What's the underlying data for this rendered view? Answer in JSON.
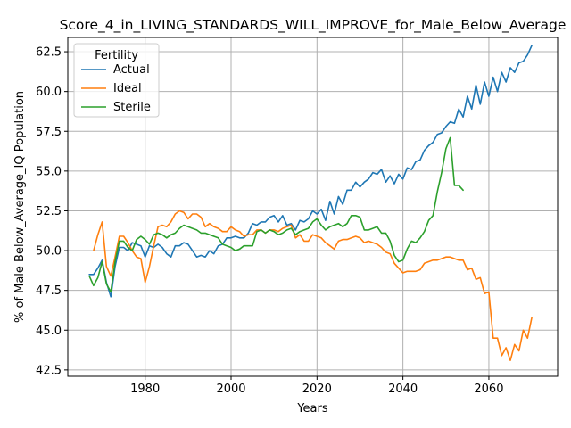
{
  "chart_data": {
    "type": "line",
    "title": "Score_4_in_LIVING_STANDARDS_WILL_IMPROVE_for_Male_Below_Average",
    "xlabel": "Years",
    "ylabel": "% of Male Below_Average_IQ Population",
    "xlim": [
      1962,
      2076
    ],
    "ylim": [
      42.1,
      63.4
    ],
    "xticks": [
      1980,
      2000,
      2020,
      2040,
      2060
    ],
    "yticks": [
      42.5,
      45.0,
      47.5,
      50.0,
      52.5,
      55.0,
      57.5,
      60.0,
      62.5
    ],
    "xtick_labels": [
      "1980",
      "2000",
      "2020",
      "2040",
      "2060"
    ],
    "ytick_labels": [
      "42.5",
      "45.0",
      "47.5",
      "50.0",
      "52.5",
      "55.0",
      "57.5",
      "60.0",
      "62.5"
    ],
    "grid": true,
    "legend": {
      "title": "Fertility",
      "position": "top-left"
    },
    "series": [
      {
        "name": "Actual",
        "color": "#1f77b4",
        "points": [
          [
            1967,
            48.5
          ],
          [
            1968,
            48.5
          ],
          [
            1969,
            48.9
          ],
          [
            1970,
            49.4
          ],
          [
            1971,
            48.0
          ],
          [
            1972,
            47.1
          ],
          [
            1973,
            49.0
          ],
          [
            1974,
            50.2
          ],
          [
            1975,
            50.2
          ],
          [
            1976,
            50.0
          ],
          [
            1977,
            50.5
          ],
          [
            1978,
            50.4
          ],
          [
            1979,
            50.3
          ],
          [
            1980,
            49.6
          ],
          [
            1981,
            50.3
          ],
          [
            1982,
            50.2
          ],
          [
            1983,
            50.4
          ],
          [
            1984,
            50.2
          ],
          [
            1985,
            49.8
          ],
          [
            1986,
            49.6
          ],
          [
            1987,
            50.3
          ],
          [
            1988,
            50.3
          ],
          [
            1989,
            50.5
          ],
          [
            1990,
            50.4
          ],
          [
            1991,
            50.0
          ],
          [
            1992,
            49.6
          ],
          [
            1993,
            49.7
          ],
          [
            1994,
            49.6
          ],
          [
            1995,
            50.0
          ],
          [
            1996,
            49.8
          ],
          [
            1997,
            50.3
          ],
          [
            1998,
            50.4
          ],
          [
            1999,
            50.8
          ],
          [
            2000,
            50.8
          ],
          [
            2001,
            50.9
          ],
          [
            2002,
            50.8
          ],
          [
            2003,
            50.8
          ],
          [
            2004,
            51.1
          ],
          [
            2005,
            51.7
          ],
          [
            2006,
            51.6
          ],
          [
            2007,
            51.8
          ],
          [
            2008,
            51.8
          ],
          [
            2009,
            52.1
          ],
          [
            2010,
            52.2
          ],
          [
            2011,
            51.8
          ],
          [
            2012,
            52.2
          ],
          [
            2013,
            51.6
          ],
          [
            2014,
            51.7
          ],
          [
            2015,
            51.3
          ],
          [
            2016,
            51.9
          ],
          [
            2017,
            51.8
          ],
          [
            2018,
            52.0
          ],
          [
            2019,
            52.5
          ],
          [
            2020,
            52.3
          ],
          [
            2021,
            52.6
          ],
          [
            2022,
            51.9
          ],
          [
            2023,
            53.1
          ],
          [
            2024,
            52.3
          ],
          [
            2025,
            53.4
          ],
          [
            2026,
            52.9
          ],
          [
            2027,
            53.8
          ],
          [
            2028,
            53.8
          ],
          [
            2029,
            54.3
          ],
          [
            2030,
            54.0
          ],
          [
            2031,
            54.3
          ],
          [
            2032,
            54.5
          ],
          [
            2033,
            54.9
          ],
          [
            2034,
            54.8
          ],
          [
            2035,
            55.1
          ],
          [
            2036,
            54.3
          ],
          [
            2037,
            54.7
          ],
          [
            2038,
            54.2
          ],
          [
            2039,
            54.8
          ],
          [
            2040,
            54.5
          ],
          [
            2041,
            55.2
          ],
          [
            2042,
            55.1
          ],
          [
            2043,
            55.6
          ],
          [
            2044,
            55.7
          ],
          [
            2045,
            56.3
          ],
          [
            2046,
            56.6
          ],
          [
            2047,
            56.8
          ],
          [
            2048,
            57.3
          ],
          [
            2049,
            57.4
          ],
          [
            2050,
            57.8
          ],
          [
            2051,
            58.1
          ],
          [
            2052,
            58.0
          ],
          [
            2053,
            58.9
          ],
          [
            2054,
            58.4
          ],
          [
            2055,
            59.7
          ],
          [
            2056,
            58.9
          ],
          [
            2057,
            60.4
          ],
          [
            2058,
            59.2
          ],
          [
            2059,
            60.6
          ],
          [
            2060,
            59.7
          ],
          [
            2061,
            60.9
          ],
          [
            2062,
            60.0
          ],
          [
            2063,
            61.2
          ],
          [
            2064,
            60.6
          ],
          [
            2065,
            61.5
          ],
          [
            2066,
            61.2
          ],
          [
            2067,
            61.8
          ],
          [
            2068,
            61.9
          ],
          [
            2069,
            62.3
          ],
          [
            2070,
            62.9
          ]
        ]
      },
      {
        "name": "Ideal",
        "color": "#ff7f0e",
        "points": [
          [
            1968,
            50.0
          ],
          [
            1969,
            51.0
          ],
          [
            1970,
            51.8
          ],
          [
            1971,
            49.0
          ],
          [
            1972,
            48.4
          ],
          [
            1973,
            49.6
          ],
          [
            1974,
            50.9
          ],
          [
            1975,
            50.9
          ],
          [
            1976,
            50.5
          ],
          [
            1977,
            50.0
          ],
          [
            1978,
            49.6
          ],
          [
            1979,
            49.5
          ],
          [
            1980,
            48.0
          ],
          [
            1981,
            49.0
          ],
          [
            1982,
            50.3
          ],
          [
            1983,
            51.5
          ],
          [
            1984,
            51.6
          ],
          [
            1985,
            51.5
          ],
          [
            1986,
            51.8
          ],
          [
            1987,
            52.3
          ],
          [
            1988,
            52.5
          ],
          [
            1989,
            52.4
          ],
          [
            1990,
            52.0
          ],
          [
            1991,
            52.3
          ],
          [
            1992,
            52.3
          ],
          [
            1993,
            52.1
          ],
          [
            1994,
            51.5
          ],
          [
            1995,
            51.7
          ],
          [
            1996,
            51.5
          ],
          [
            1997,
            51.4
          ],
          [
            1998,
            51.2
          ],
          [
            1999,
            51.2
          ],
          [
            2000,
            51.5
          ],
          [
            2001,
            51.3
          ],
          [
            2002,
            51.2
          ],
          [
            2003,
            50.9
          ],
          [
            2004,
            51.0
          ],
          [
            2005,
            51.0
          ],
          [
            2006,
            51.3
          ],
          [
            2007,
            51.3
          ],
          [
            2008,
            51.1
          ],
          [
            2009,
            51.3
          ],
          [
            2010,
            51.3
          ],
          [
            2011,
            51.2
          ],
          [
            2012,
            51.4
          ],
          [
            2013,
            51.5
          ],
          [
            2014,
            51.6
          ],
          [
            2015,
            50.8
          ],
          [
            2016,
            51.0
          ],
          [
            2017,
            50.6
          ],
          [
            2018,
            50.6
          ],
          [
            2019,
            51.0
          ],
          [
            2020,
            50.9
          ],
          [
            2021,
            50.8
          ],
          [
            2022,
            50.5
          ],
          [
            2023,
            50.3
          ],
          [
            2024,
            50.1
          ],
          [
            2025,
            50.6
          ],
          [
            2026,
            50.7
          ],
          [
            2027,
            50.7
          ],
          [
            2028,
            50.8
          ],
          [
            2029,
            50.9
          ],
          [
            2030,
            50.8
          ],
          [
            2031,
            50.5
          ],
          [
            2032,
            50.6
          ],
          [
            2033,
            50.5
          ],
          [
            2034,
            50.4
          ],
          [
            2035,
            50.2
          ],
          [
            2036,
            49.9
          ],
          [
            2037,
            49.8
          ],
          [
            2038,
            49.2
          ],
          [
            2039,
            48.9
          ],
          [
            2040,
            48.6
          ],
          [
            2041,
            48.7
          ],
          [
            2042,
            48.7
          ],
          [
            2043,
            48.7
          ],
          [
            2044,
            48.8
          ],
          [
            2045,
            49.2
          ],
          [
            2046,
            49.3
          ],
          [
            2047,
            49.4
          ],
          [
            2048,
            49.4
          ],
          [
            2049,
            49.5
          ],
          [
            2050,
            49.6
          ],
          [
            2051,
            49.6
          ],
          [
            2052,
            49.5
          ],
          [
            2053,
            49.4
          ],
          [
            2054,
            49.4
          ],
          [
            2055,
            48.8
          ],
          [
            2056,
            48.9
          ],
          [
            2057,
            48.2
          ],
          [
            2058,
            48.3
          ],
          [
            2059,
            47.3
          ],
          [
            2060,
            47.4
          ],
          [
            2061,
            44.5
          ],
          [
            2062,
            44.5
          ],
          [
            2063,
            43.4
          ],
          [
            2064,
            43.9
          ],
          [
            2065,
            43.1
          ],
          [
            2066,
            44.1
          ],
          [
            2067,
            43.7
          ],
          [
            2068,
            45.0
          ],
          [
            2069,
            44.5
          ],
          [
            2070,
            45.8
          ]
        ]
      },
      {
        "name": "Sterile",
        "color": "#2ca02c",
        "points": [
          [
            1967,
            48.4
          ],
          [
            1968,
            47.8
          ],
          [
            1969,
            48.3
          ],
          [
            1970,
            49.3
          ],
          [
            1971,
            47.9
          ],
          [
            1972,
            47.4
          ],
          [
            1973,
            49.3
          ],
          [
            1974,
            50.6
          ],
          [
            1975,
            50.6
          ],
          [
            1976,
            50.2
          ],
          [
            1977,
            50.0
          ],
          [
            1978,
            50.7
          ],
          [
            1979,
            50.9
          ],
          [
            1980,
            50.7
          ],
          [
            1981,
            50.4
          ],
          [
            1982,
            51.0
          ],
          [
            1983,
            51.1
          ],
          [
            1984,
            51.0
          ],
          [
            1985,
            50.8
          ],
          [
            1986,
            51.0
          ],
          [
            1987,
            51.1
          ],
          [
            1988,
            51.4
          ],
          [
            1989,
            51.6
          ],
          [
            1990,
            51.5
          ],
          [
            1991,
            51.4
          ],
          [
            1992,
            51.3
          ],
          [
            1993,
            51.1
          ],
          [
            1994,
            51.1
          ],
          [
            1995,
            51.0
          ],
          [
            1996,
            50.9
          ],
          [
            1997,
            50.8
          ],
          [
            1998,
            50.4
          ],
          [
            1999,
            50.3
          ],
          [
            2000,
            50.2
          ],
          [
            2001,
            50.0
          ],
          [
            2002,
            50.1
          ],
          [
            2003,
            50.3
          ],
          [
            2004,
            50.3
          ],
          [
            2005,
            50.3
          ],
          [
            2006,
            51.2
          ],
          [
            2007,
            51.3
          ],
          [
            2008,
            51.1
          ],
          [
            2009,
            51.3
          ],
          [
            2010,
            51.2
          ],
          [
            2011,
            51.0
          ],
          [
            2012,
            51.1
          ],
          [
            2013,
            51.3
          ],
          [
            2014,
            51.4
          ],
          [
            2015,
            51.0
          ],
          [
            2016,
            51.2
          ],
          [
            2017,
            51.3
          ],
          [
            2018,
            51.4
          ],
          [
            2019,
            51.8
          ],
          [
            2020,
            52.0
          ],
          [
            2021,
            51.6
          ],
          [
            2022,
            51.3
          ],
          [
            2023,
            51.5
          ],
          [
            2024,
            51.6
          ],
          [
            2025,
            51.7
          ],
          [
            2026,
            51.5
          ],
          [
            2027,
            51.7
          ],
          [
            2028,
            52.2
          ],
          [
            2029,
            52.2
          ],
          [
            2030,
            52.1
          ],
          [
            2031,
            51.3
          ],
          [
            2032,
            51.3
          ],
          [
            2033,
            51.4
          ],
          [
            2034,
            51.5
          ],
          [
            2035,
            51.1
          ],
          [
            2036,
            51.1
          ],
          [
            2037,
            50.6
          ],
          [
            2038,
            49.7
          ],
          [
            2039,
            49.3
          ],
          [
            2040,
            49.4
          ],
          [
            2041,
            50.1
          ],
          [
            2042,
            50.6
          ],
          [
            2043,
            50.5
          ],
          [
            2044,
            50.8
          ],
          [
            2045,
            51.2
          ],
          [
            2046,
            51.9
          ],
          [
            2047,
            52.2
          ],
          [
            2048,
            53.7
          ],
          [
            2049,
            54.9
          ],
          [
            2050,
            56.4
          ],
          [
            2051,
            57.1
          ],
          [
            2052,
            54.1
          ],
          [
            2053,
            54.1
          ],
          [
            2054,
            53.8
          ]
        ]
      }
    ]
  }
}
